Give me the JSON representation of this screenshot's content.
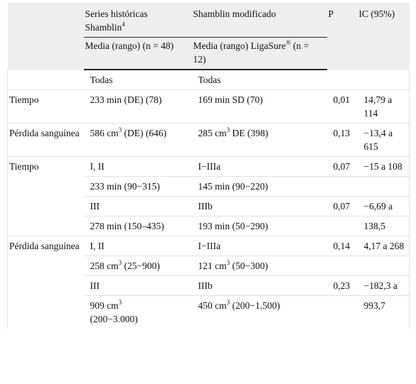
{
  "header": {
    "col1_line1": "Series históricas",
    "col1_line2": "Shamblin",
    "col1_sup": "4",
    "col2": "Shamblin modificado",
    "col3": "P",
    "col4": "IC (95%)",
    "sub1": "Media (rango) (n = 48)",
    "sub2_pre": "Media (rango) LigaSure",
    "sub2_sup": "®",
    "sub2_post": " (n = 12)"
  },
  "rows": {
    "todas_a": "Todas",
    "todas_b": "Todas",
    "tiempo1_label": "Tiempo",
    "tiempo1_a": "233 min (DE) (78)",
    "tiempo1_b": "169 min SD (70)",
    "tiempo1_p": "0,01",
    "tiempo1_ic": "14,79 a 114",
    "perdida1_label": "Pérdida sanguínea",
    "perdida1_a_pre": "586 cm",
    "perdida1_a_sup": "3",
    "perdida1_a_post": " (DE) (646)",
    "perdida1_b_pre": "285  cm",
    "perdida1_b_sup": "3",
    "perdida1_b_post": " DE (398)",
    "perdida1_p": "0,13",
    "perdida1_ic": "−13,4 a 615",
    "tiempo2_label": "Tiempo",
    "t2r1_a": "I, II",
    "t2r1_b": "I−IIIa",
    "t2r1_p": "0,07",
    "t2r1_ic": "−15 a 108",
    "t2r2_a": "233 min (90−315)",
    "t2r2_b": "145 min (90−220)",
    "t2r3_a": "III",
    "t2r3_b": "IIIb",
    "t2r3_p": "0,07",
    "t2r3_ic": "−6,69 a",
    "t2r4_a": "278 min (150–435)",
    "t2r4_b": "193 min (50−290)",
    "t2r4_ic": "138,5",
    "perdida2_label": "Pérdida sanguínea",
    "p2r1_a": "I, II",
    "p2r1_b": "I−IIIa",
    "p2r1_p": "0,14",
    "p2r1_ic": "4,17 a 268",
    "p2r2_a_pre": "258  cm",
    "p2r2_a_sup": "3",
    "p2r2_a_post": " (25−900)",
    "p2r2_b_pre": "121  cm",
    "p2r2_b_sup": "3",
    "p2r2_b_post": " (50−300)",
    "p2r3_a": "III",
    "p2r3_b": "IIIb",
    "p2r3_p": "0,23",
    "p2r3_ic": "−182,3 a",
    "p2r4_a_pre": "909  cm",
    "p2r4_a_sup": "3",
    "p2r4_a_post": " (200−3.000)",
    "p2r4_b_pre": "450  cm",
    "p2r4_b_sup": "3",
    "p2r4_b_post": " (200−1.500)",
    "p2r4_ic": "993,7"
  }
}
